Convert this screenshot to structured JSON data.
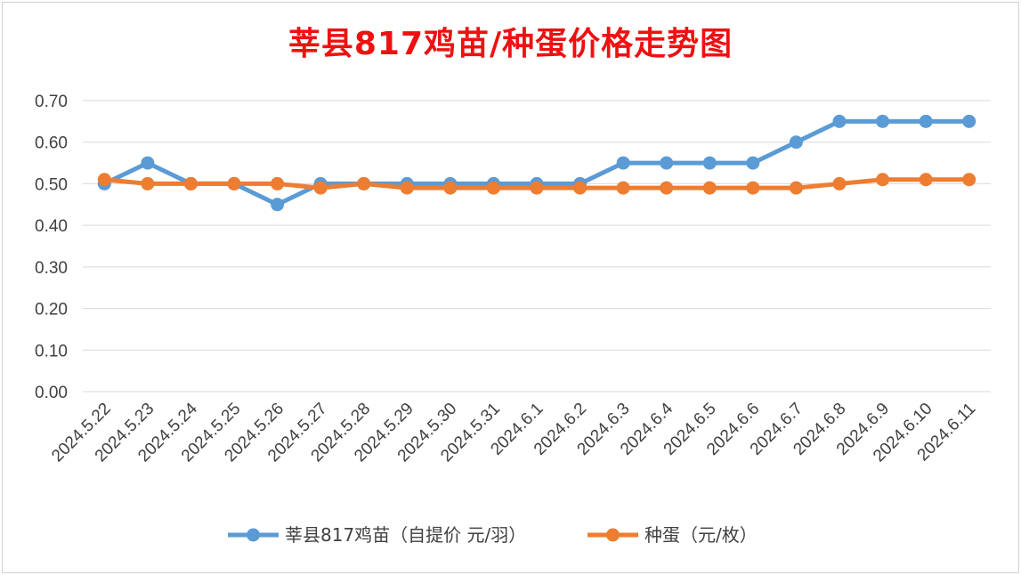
{
  "chart_data": {
    "type": "line",
    "title": "莘县817鸡苗/种蛋价格走势图",
    "categories": [
      "2024.5.22",
      "2024.5.23",
      "2024.5.24",
      "2024.5.25",
      "2024.5.26",
      "2024.5.27",
      "2024.5.28",
      "2024.5.29",
      "2024.5.30",
      "2024.5.31",
      "2024.6.1",
      "2024.6.2",
      "2024.6.3",
      "2024.6.4",
      "2024.6.5",
      "2024.6.6",
      "2024.6.7",
      "2024.6.8",
      "2024.6.9",
      "2024.6.10",
      "2024.6.11"
    ],
    "series": [
      {
        "name": "莘县817鸡苗（自提价 元/羽）",
        "color": "#5b9bd5",
        "values": [
          0.5,
          0.55,
          0.5,
          0.5,
          0.45,
          0.5,
          0.5,
          0.5,
          0.5,
          0.5,
          0.5,
          0.5,
          0.55,
          0.55,
          0.55,
          0.55,
          0.6,
          0.65,
          0.65,
          0.65,
          0.65
        ]
      },
      {
        "name": "种蛋（元/枚）",
        "color": "#ed7d31",
        "values": [
          0.51,
          0.5,
          0.5,
          0.5,
          0.5,
          0.49,
          0.5,
          0.49,
          0.49,
          0.49,
          0.49,
          0.49,
          0.49,
          0.49,
          0.49,
          0.49,
          0.49,
          0.5,
          0.51,
          0.51,
          0.51
        ]
      }
    ],
    "ylim": [
      0,
      0.7
    ],
    "yticks": [
      "0.00",
      "0.10",
      "0.20",
      "0.30",
      "0.40",
      "0.50",
      "0.60",
      "0.70"
    ],
    "grid": true,
    "legend": "bottom"
  }
}
